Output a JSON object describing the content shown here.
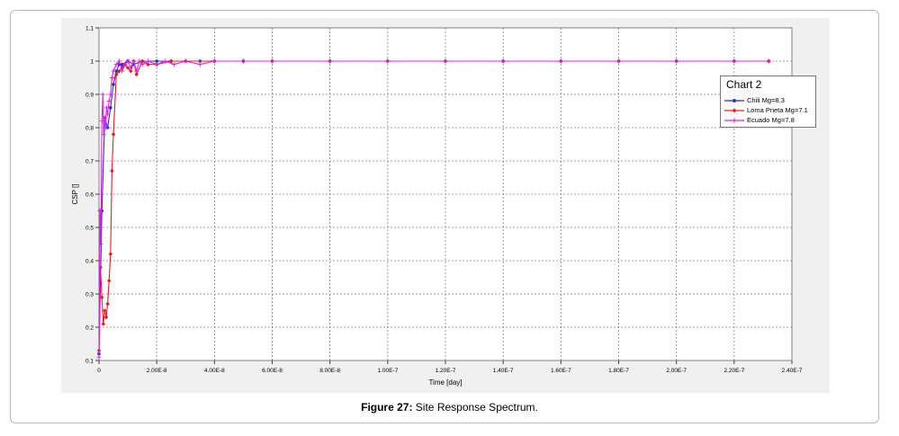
{
  "caption": {
    "label": "Figure 27:",
    "text": " Site Response Spectrum."
  },
  "chart_data": {
    "type": "line",
    "title": "",
    "xlabel": "Time [day]",
    "ylabel": "CSP []",
    "xlim": [
      0,
      2.4e-07
    ],
    "ylim": [
      0.1,
      1.1
    ],
    "grid": true,
    "x_ticks": [
      0,
      2e-08,
      4e-08,
      6e-08,
      8e-08,
      1e-07,
      1.2e-07,
      1.4e-07,
      1.6e-07,
      1.8e-07,
      2e-07,
      2.2e-07,
      2.4e-07
    ],
    "x_tick_labels": [
      "0",
      "2.00E-8",
      "4.00E-8",
      "6.00E-8",
      "8.00E-8",
      "1.00E-7",
      "1.20E-7",
      "1.40E-7",
      "1.60E-7",
      "1.80E-7",
      "2.00E-7",
      "2.20E-7",
      "2.40E-7"
    ],
    "y_ticks": [
      0.1,
      0.2,
      0.3,
      0.4,
      0.5,
      0.6,
      0.7,
      0.8,
      0.9,
      1,
      1.1
    ],
    "y_tick_labels": [
      "0.1",
      "0.2",
      "0.3",
      "0.4",
      "0.5",
      "0.6",
      "0.7",
      "0.8",
      "0.9",
      "1",
      "1.1"
    ],
    "legend": {
      "title": "Chart 2",
      "position": "top-right"
    },
    "series": [
      {
        "name": "Chili Mg=8.3",
        "color": "#2a2ad8",
        "marker": "circle",
        "x": [
          0,
          1e-09,
          2e-09,
          3e-09,
          4e-09,
          5e-09,
          6e-09,
          7e-09,
          8e-09,
          1e-08,
          1.2e-08,
          1.5e-08,
          2e-08,
          2.5e-08,
          3e-08,
          3.5e-08,
          4e-08,
          5e-08,
          6e-08,
          8e-08,
          1e-07,
          1.2e-07,
          1.4e-07,
          1.6e-07,
          1.8e-07,
          2e-07,
          2.2e-07,
          2.32e-07
        ],
        "y": [
          0.12,
          0.55,
          0.83,
          0.8,
          0.86,
          0.93,
          0.97,
          0.99,
          0.99,
          1,
          0.99,
          1,
          1,
          1,
          1,
          1,
          1,
          1,
          1,
          1,
          1,
          1,
          1,
          1,
          1,
          1,
          1,
          1
        ]
      },
      {
        "name": "Loma Prieta Mg=7.1",
        "color": "#e02020",
        "marker": "diamond",
        "x": [
          0,
          5e-10,
          1e-09,
          1.5e-09,
          2e-09,
          2.5e-09,
          3e-09,
          3.5e-09,
          4e-09,
          4.5e-09,
          5e-09,
          6e-09,
          7e-09,
          8e-09,
          9e-09,
          1e-08,
          1.1e-08,
          1.2e-08,
          1.3e-08,
          1.5e-08,
          1.7e-08,
          2e-08,
          2.5e-08,
          3e-08,
          4e-08,
          6e-08,
          8e-08,
          1e-07,
          1.2e-07,
          1.4e-07,
          1.6e-07,
          1.8e-07,
          2e-07,
          2.2e-07,
          2.32e-07
        ],
        "y": [
          0.13,
          0.38,
          0.29,
          0.21,
          0.25,
          0.23,
          0.27,
          0.34,
          0.42,
          0.67,
          0.78,
          0.96,
          0.97,
          0.98,
          0.99,
          0.98,
          0.97,
          1,
          0.96,
          1,
          0.99,
          0.99,
          1,
          1,
          1,
          1,
          1,
          1,
          1,
          1,
          1,
          1,
          1,
          1,
          1
        ]
      },
      {
        "name": "Ecuado Mg=7.8",
        "color": "#e020e0",
        "marker": "plus",
        "x": [
          0,
          3e-10,
          6e-10,
          1e-09,
          1.3e-09,
          1.6e-09,
          2e-09,
          2.3e-09,
          2.6e-09,
          3e-09,
          3.5e-09,
          4e-09,
          4.5e-09,
          5e-09,
          6e-09,
          7e-09,
          8e-09,
          9e-09,
          1e-08,
          1.1e-08,
          1.2e-08,
          1.3e-08,
          1.4e-08,
          1.5e-08,
          1.7e-08,
          2e-08,
          2.3e-08,
          2.6e-08,
          3e-08,
          3.5e-08,
          4e-08,
          5e-08,
          6e-08,
          8e-08,
          1e-07,
          1.2e-07,
          1.4e-07,
          1.6e-07,
          1.8e-07,
          2e-07,
          2.2e-07,
          2.32e-07
        ],
        "y": [
          0.11,
          0.55,
          0.45,
          0.82,
          0.9,
          0.78,
          0.83,
          0.8,
          0.86,
          0.84,
          0.88,
          0.9,
          0.95,
          0.97,
          0.99,
          1,
          0.97,
          0.99,
          1,
          0.98,
          1,
          0.97,
          1,
          0.99,
          1,
          0.99,
          1,
          0.99,
          1,
          0.99,
          1,
          1,
          1,
          1,
          1,
          1,
          1,
          1,
          1,
          1,
          1,
          1
        ]
      }
    ]
  }
}
